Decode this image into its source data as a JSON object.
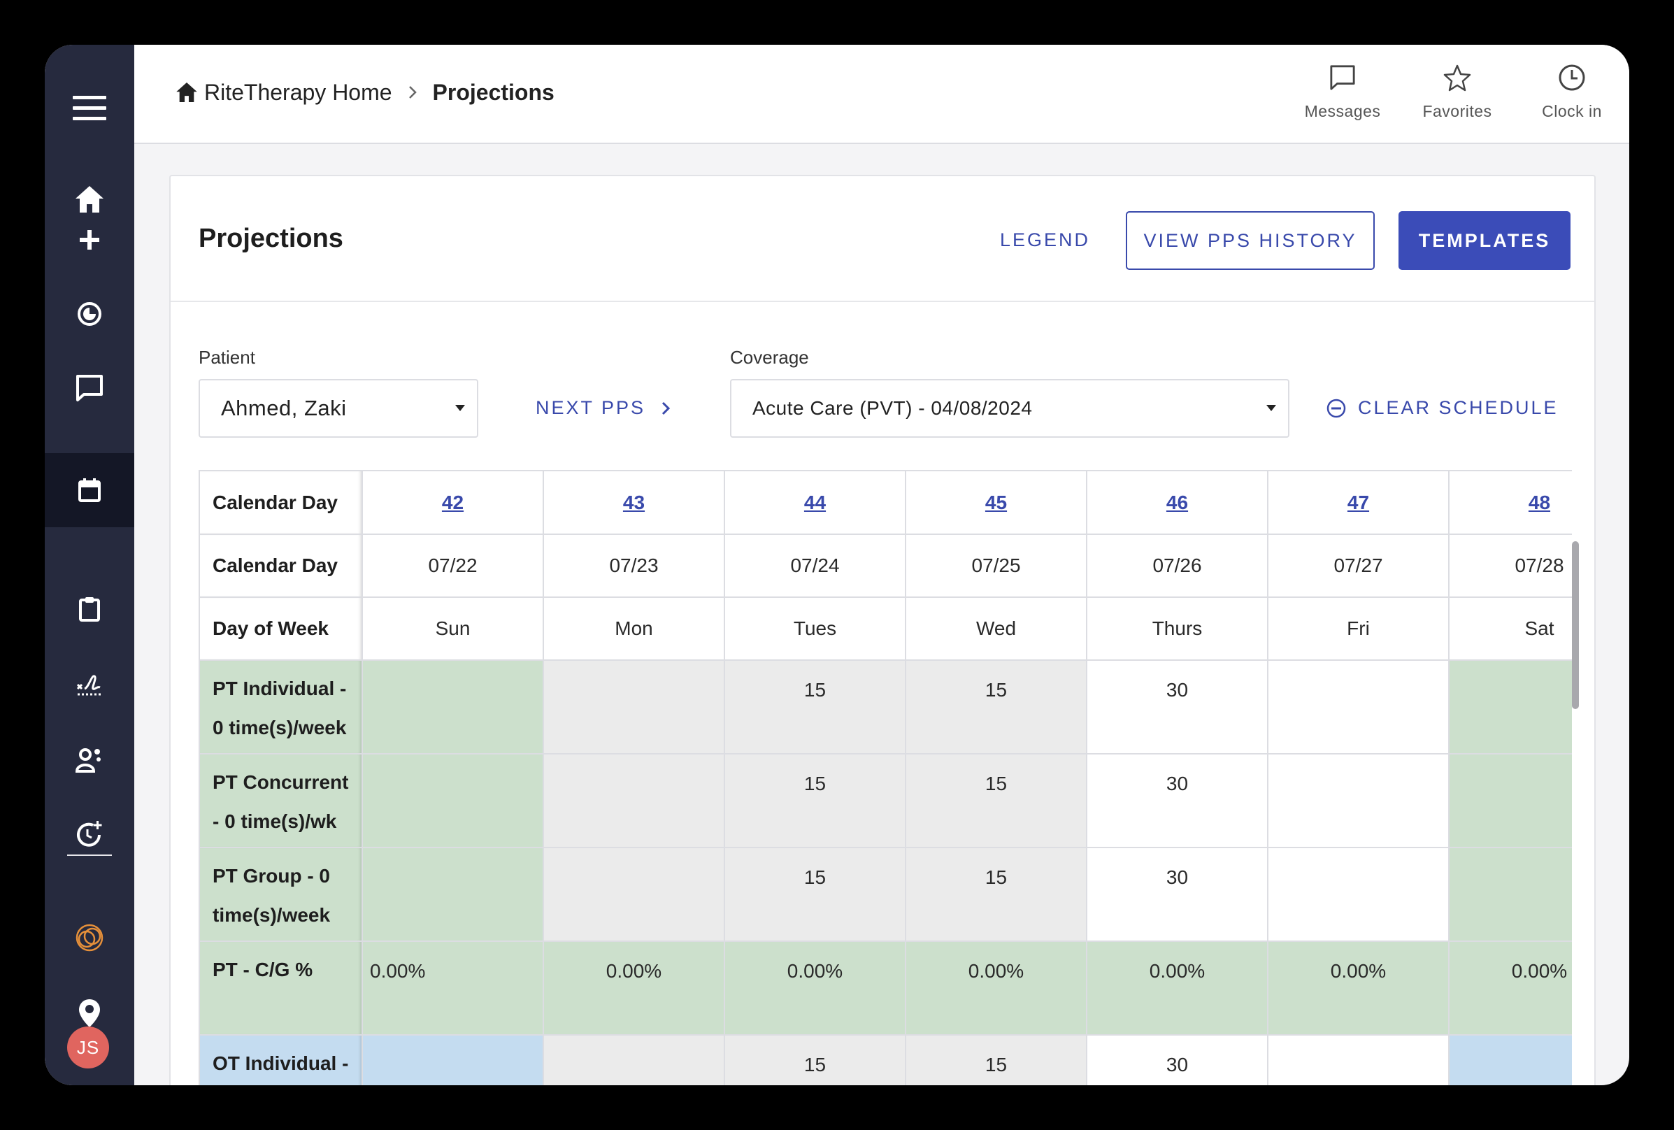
{
  "breadcrumb": {
    "home": "RiteTherapy Home",
    "current": "Projections"
  },
  "top_actions": [
    {
      "label": "Messages",
      "icon": "message-icon"
    },
    {
      "label": "Favorites",
      "icon": "star-icon"
    },
    {
      "label": "Clock in",
      "icon": "clock-icon"
    }
  ],
  "sidebar": {
    "items": [
      "menu-icon",
      "home-icon",
      "plus-icon",
      "target-icon",
      "chat-icon",
      "calendar-icon",
      "clipboard-icon",
      "signature-icon",
      "users-icon",
      "history-icon",
      "ring-logo-icon",
      "location-icon"
    ],
    "active": "calendar-icon",
    "avatar": "JS"
  },
  "card": {
    "title": "Projections",
    "legend_label": "LEGEND",
    "pps_history_label": "VIEW PPS HISTORY",
    "templates_label": "TEMPLATES"
  },
  "filters": {
    "patient_label": "Patient",
    "patient_value": "Ahmed, Zaki",
    "next_pps_label": "NEXT PPS",
    "coverage_label": "Coverage",
    "coverage_value": "Acute Care (PVT) - 04/08/2024",
    "clear_schedule_label": "CLEAR SCHEDULE"
  },
  "table": {
    "header_rows": [
      {
        "label": "Calendar Day",
        "values": [
          "42",
          "43",
          "44",
          "45",
          "46",
          "47",
          "48"
        ]
      },
      {
        "label": "Calendar Day",
        "values": [
          "07/22",
          "07/23",
          "07/24",
          "07/25",
          "07/26",
          "07/27",
          "07/28"
        ]
      },
      {
        "label": "Day of Week",
        "values": [
          "Sun",
          "Mon",
          "Tues",
          "Wed",
          "Thurs",
          "Fri",
          "Sat"
        ]
      }
    ],
    "body_rows": [
      {
        "label_line1": "PT Individual -",
        "label_line2": "0 time(s)/week",
        "values": [
          "",
          "",
          "15",
          "15",
          "30",
          "",
          ""
        ]
      },
      {
        "label_line1": "PT Concurrent",
        "label_line2": "- 0 time(s)/wk",
        "values": [
          "",
          "",
          "15",
          "15",
          "30",
          "",
          ""
        ]
      },
      {
        "label_line1": "PT Group - 0",
        "label_line2": "time(s)/week",
        "values": [
          "",
          "",
          "15",
          "15",
          "30",
          "",
          ""
        ]
      },
      {
        "label_line1": "PT - C/G %",
        "label_line2": "",
        "values": [
          "0.00%",
          "0.00%",
          "0.00%",
          "0.00%",
          "0.00%",
          "0.00%",
          "0.00%"
        ]
      },
      {
        "label_line1": "OT Individual -",
        "label_line2": "",
        "values": [
          "",
          "",
          "15",
          "15",
          "30",
          "",
          ""
        ]
      }
    ]
  },
  "colors": {
    "sidebar_bg": "#262a3e",
    "sidebar_active": "#141726",
    "accent": "#3b4cb8",
    "pt_green": "#cce0cc",
    "gray_cell": "#ebebeb",
    "ot_blue": "#c4dcf0",
    "avatar_bg": "#e0655f",
    "logo_orange": "#e6903a"
  }
}
